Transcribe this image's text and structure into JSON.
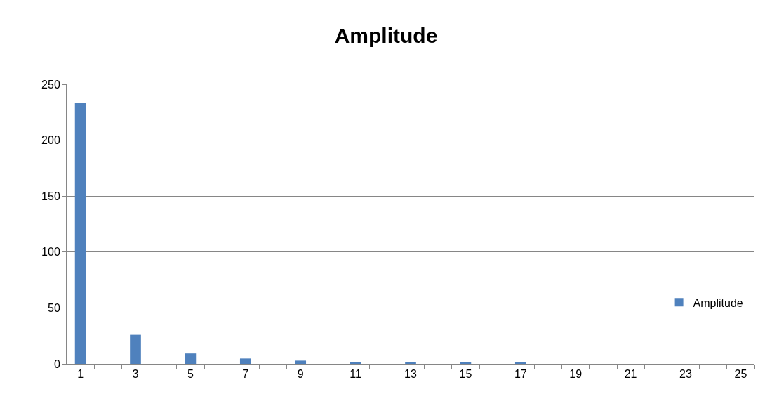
{
  "chart_data": {
    "type": "bar",
    "title": "Amplitude",
    "x": [
      1,
      2,
      3,
      4,
      5,
      6,
      7,
      8,
      9,
      10,
      11,
      12,
      13,
      14,
      15,
      16,
      17,
      18,
      19,
      20,
      21,
      22,
      23,
      24
    ],
    "xlim": [
      0.5,
      25.5
    ],
    "xticks": [
      1,
      3,
      5,
      7,
      9,
      11,
      13,
      15,
      17,
      19,
      21,
      23,
      25
    ],
    "series": [
      {
        "name": "Amplitude",
        "color": "#4f81bd",
        "values": [
          233,
          0,
          26,
          0,
          9.3,
          0,
          4.8,
          0,
          2.9,
          0,
          1.9,
          0,
          1.4,
          0,
          1.0,
          0,
          0.8,
          0,
          null,
          0,
          null,
          0,
          null,
          0
        ]
      }
    ],
    "ylim": [
      0,
      250
    ],
    "yticks": [
      0,
      50,
      100,
      150,
      200,
      250
    ],
    "grid": "y",
    "legend": "right"
  }
}
